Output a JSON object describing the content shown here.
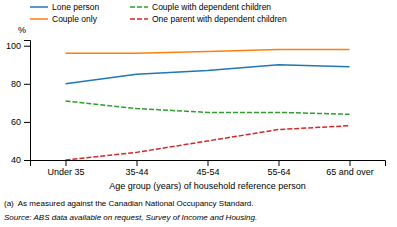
{
  "chart_data": {
    "type": "line",
    "categories": [
      "Under 35",
      "35-44",
      "45-54",
      "55-64",
      "65 and over"
    ],
    "series": [
      {
        "name": "Lone person",
        "values": [
          80,
          85,
          87,
          90,
          89
        ],
        "line_style": "solid"
      },
      {
        "name": "Couple only",
        "values": [
          96,
          96,
          97,
          98,
          98
        ],
        "line_style": "solid"
      },
      {
        "name": "Couple with dependent children",
        "values": [
          71,
          67,
          65,
          65,
          64
        ],
        "line_style": "dashed"
      },
      {
        "name": "One parent with dependent children",
        "values": [
          40,
          44,
          50,
          56,
          58
        ],
        "line_style": "dashed"
      }
    ],
    "ylabel": "%",
    "xlabel": "Age group (years) of household reference person",
    "ylim": [
      40,
      103
    ],
    "yticks": [
      40,
      60,
      80,
      100
    ],
    "grid": false,
    "legend": "top",
    "annotations": [
      "(a)  As measured against the Canadian National Occupancy Standard.",
      "Source: ABS data available on request, Survey of Income and Housing."
    ]
  }
}
